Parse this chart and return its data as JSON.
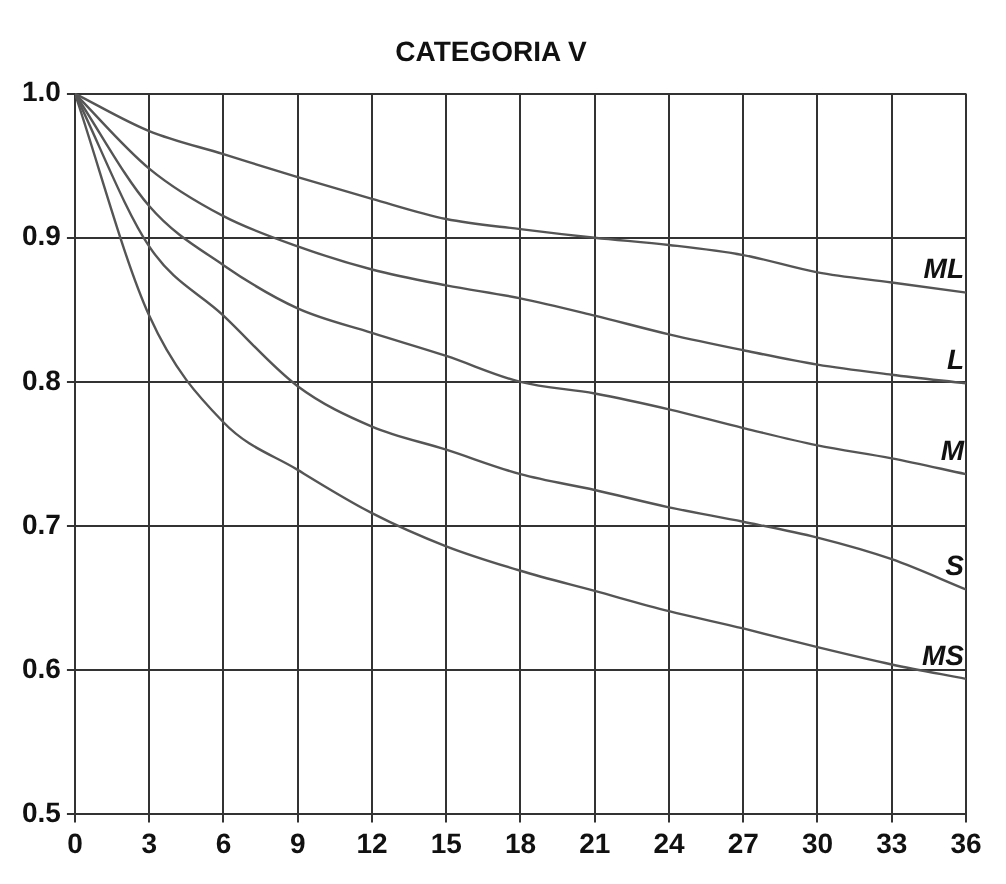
{
  "chart_data": {
    "type": "line",
    "title": "CATEGORIA V",
    "x": [
      0,
      3,
      6,
      9,
      12,
      15,
      18,
      21,
      24,
      27,
      30,
      33,
      36
    ],
    "series": [
      {
        "name": "ML",
        "color": "#555555",
        "values": [
          1.0,
          0.974,
          0.958,
          0.942,
          0.927,
          0.913,
          0.906,
          0.9,
          0.895,
          0.888,
          0.876,
          0.869,
          0.862
        ]
      },
      {
        "name": "L",
        "color": "#555555",
        "values": [
          1.0,
          0.948,
          0.915,
          0.894,
          0.878,
          0.867,
          0.858,
          0.846,
          0.833,
          0.822,
          0.812,
          0.805,
          0.799
        ]
      },
      {
        "name": "M",
        "color": "#555555",
        "values": [
          1.0,
          0.922,
          0.881,
          0.851,
          0.834,
          0.818,
          0.8,
          0.792,
          0.781,
          0.768,
          0.756,
          0.747,
          0.736
        ]
      },
      {
        "name": "S",
        "color": "#555555",
        "values": [
          1.0,
          0.894,
          0.846,
          0.797,
          0.769,
          0.753,
          0.736,
          0.725,
          0.713,
          0.703,
          0.692,
          0.677,
          0.656
        ]
      },
      {
        "name": "MS",
        "color": "#555555",
        "values": [
          1.0,
          0.846,
          0.772,
          0.739,
          0.709,
          0.686,
          0.669,
          0.655,
          0.641,
          0.629,
          0.616,
          0.604,
          0.594
        ]
      }
    ],
    "xlim": [
      0,
      36
    ],
    "xticks": [
      0,
      3,
      6,
      9,
      12,
      15,
      18,
      21,
      24,
      27,
      30,
      33,
      36
    ],
    "ylim": [
      0.5,
      1.0
    ],
    "yticks": [
      {
        "value": 0.5,
        "label": "0.5"
      },
      {
        "value": 0.6,
        "label": "0.6"
      },
      {
        "value": 0.7,
        "label": "0.7"
      },
      {
        "value": 0.8,
        "label": "0.8"
      },
      {
        "value": 0.9,
        "label": "0.9"
      },
      {
        "value": 1.0,
        "label": "1.0"
      }
    ],
    "grid": true,
    "legend": false,
    "marker": "none",
    "line_style": "solid"
  }
}
